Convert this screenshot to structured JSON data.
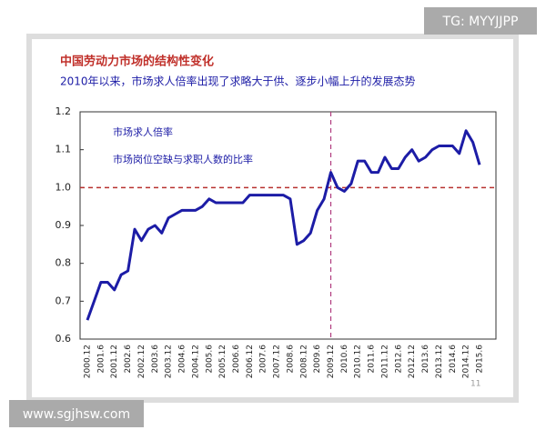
{
  "watermark": "TG: MYYJJPP",
  "site": "www.sgjhsw.com",
  "page_number": "11",
  "chart_data": {
    "type": "line",
    "title": "中国劳动力市场的结构性变化",
    "subtitle": "2010年以来，市场求人倍率出现了求略大于供、逐步小幅上升的发展态势",
    "annotations": [
      "市场求人倍率",
      "市场岗位空缺与求职人数的比率"
    ],
    "categories": [
      "2000.12",
      null,
      "2001.6",
      null,
      "2001.12",
      null,
      "2002.6",
      null,
      "2002.12",
      null,
      "2003.6",
      null,
      "2003.12",
      null,
      "2004.6",
      null,
      "2004.12",
      null,
      "2005.6",
      null,
      "2005.12",
      null,
      "2006.6",
      null,
      "2006.12",
      null,
      "2007.6",
      null,
      "2007.12",
      null,
      "2008.6",
      null,
      "2008.12",
      null,
      "2009.6",
      null,
      "2009.12",
      null,
      "2010.6",
      null,
      "2010.12",
      null,
      "2011.6",
      null,
      "2011.12",
      null,
      "2012.6",
      null,
      "2012.12",
      null,
      "2013.6",
      null,
      "2013.12",
      null,
      "2014.6",
      null,
      "2014.12",
      null,
      "2015.6"
    ],
    "values": [
      0.65,
      0.7,
      0.75,
      0.75,
      0.73,
      0.77,
      0.78,
      0.89,
      0.86,
      0.89,
      0.9,
      0.88,
      0.92,
      0.93,
      0.94,
      0.94,
      0.94,
      0.95,
      0.97,
      0.96,
      0.96,
      0.96,
      0.96,
      0.96,
      0.98,
      0.98,
      0.98,
      0.98,
      0.98,
      0.98,
      0.97,
      0.85,
      0.86,
      0.88,
      0.94,
      0.97,
      1.04,
      1.0,
      0.99,
      1.01,
      1.07,
      1.07,
      1.04,
      1.04,
      1.08,
      1.05,
      1.05,
      1.08,
      1.1,
      1.07,
      1.08,
      1.1,
      1.11,
      1.11,
      1.11,
      1.09,
      1.15,
      1.12,
      1.06
    ],
    "color": "#1c1ca6",
    "ylim": [
      0.6,
      1.2
    ],
    "yticks": [
      0.6,
      0.7,
      0.8,
      0.9,
      {
        "value": 1,
        "label": "1.0"
      },
      1.1,
      1.2
    ],
    "reference_y": 1,
    "reference_y_color": "#b8312f",
    "reference_x": "2009.12",
    "reference_x_color": "#b03a7e"
  }
}
